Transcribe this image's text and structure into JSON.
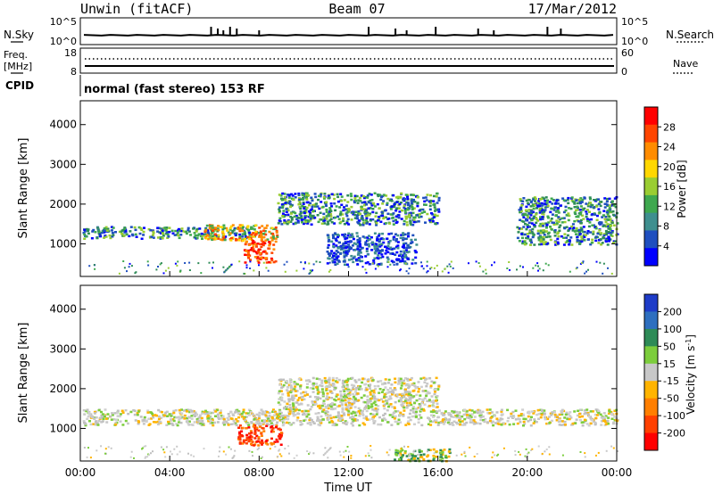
{
  "header": {
    "station": "Unwin (fitACF)",
    "beam": "Beam 07",
    "date": "17/Mar/2012"
  },
  "top_panels": {
    "nsky_label": "N.Sky",
    "nsky_ticks": [
      "10^5",
      "10^0"
    ],
    "nsearch_label": "N.Search",
    "nsearch_ticks": [
      "10^5",
      "10^0"
    ],
    "freq_label": "Freq.",
    "freq_unit": "[MHz]",
    "freq_ticks": [
      "18",
      "8"
    ],
    "nave_label": "Nave",
    "nave_ticks": [
      "60",
      "0"
    ],
    "cpid_label": "CPID",
    "cpid_value": "normal (fast stereo) 153 RF"
  },
  "chart_data": [
    {
      "type": "heatmap",
      "title": "",
      "ylabel": "Slant Range [km]",
      "ylim": [
        180,
        4600
      ],
      "yticks": [
        "1000",
        "2000",
        "3000",
        "4000"
      ],
      "xlim": [
        0,
        24
      ],
      "colorbar": {
        "label": "Power [dB]",
        "ticks": [
          "4",
          "8",
          "12",
          "16",
          "20",
          "24",
          "28"
        ],
        "colors": [
          "#0000ff",
          "#1f4fbf",
          "#3f8f8f",
          "#3fa84f",
          "#9acd32",
          "#ffd700",
          "#ff8c00",
          "#ff4500",
          "#ff0000"
        ]
      },
      "regions": [
        {
          "x0": 0.1,
          "x1": 7.6,
          "r0": 1150,
          "r1": 1450,
          "level": "green",
          "note": "band"
        },
        {
          "x0": 5.5,
          "x1": 8.8,
          "r0": 1100,
          "r1": 1500,
          "level": "orange"
        },
        {
          "x0": 7.3,
          "x1": 8.7,
          "r0": 550,
          "r1": 1100,
          "level": "red"
        },
        {
          "x0": 8.8,
          "x1": 16.0,
          "r0": 1500,
          "r1": 2300,
          "level": "green"
        },
        {
          "x0": 11.0,
          "x1": 15.0,
          "r0": 500,
          "r1": 1300,
          "level": "blue"
        },
        {
          "x0": 19.5,
          "x1": 24.0,
          "r0": 1000,
          "r1": 2200,
          "level": "green"
        }
      ]
    },
    {
      "type": "heatmap",
      "title": "",
      "xlabel": "Time UT",
      "ylabel": "Slant Range [km]",
      "ylim": [
        180,
        4600
      ],
      "yticks": [
        "1000",
        "2000",
        "3000",
        "4000"
      ],
      "xlim": [
        0,
        24
      ],
      "xticks": [
        "00:00",
        "04:00",
        "08:00",
        "12:00",
        "16:00",
        "20:00",
        "00:00"
      ],
      "colorbar": {
        "label": "Velocity [m s^-1]",
        "ticks": [
          "200",
          "100",
          "50",
          "15",
          "-15",
          "-50",
          "-100",
          "-200"
        ],
        "colors": [
          "#1e3cc8",
          "#2e6fbf",
          "#2e8b57",
          "#7ccd3c",
          "#c8c8c8",
          "#ffb400",
          "#ff7f00",
          "#ff4000",
          "#ff0000"
        ]
      },
      "regions": [
        {
          "x0": 0.1,
          "x1": 24.0,
          "r0": 1100,
          "r1": 1500,
          "level": "gray"
        },
        {
          "x0": 7.0,
          "x1": 9.0,
          "r0": 600,
          "r1": 1100,
          "level": "red"
        },
        {
          "x0": 8.8,
          "x1": 16.0,
          "r0": 1500,
          "r1": 2300,
          "level": "gray"
        },
        {
          "x0": 14.0,
          "x1": 16.5,
          "r0": 200,
          "r1": 500,
          "level": "green"
        }
      ]
    }
  ]
}
